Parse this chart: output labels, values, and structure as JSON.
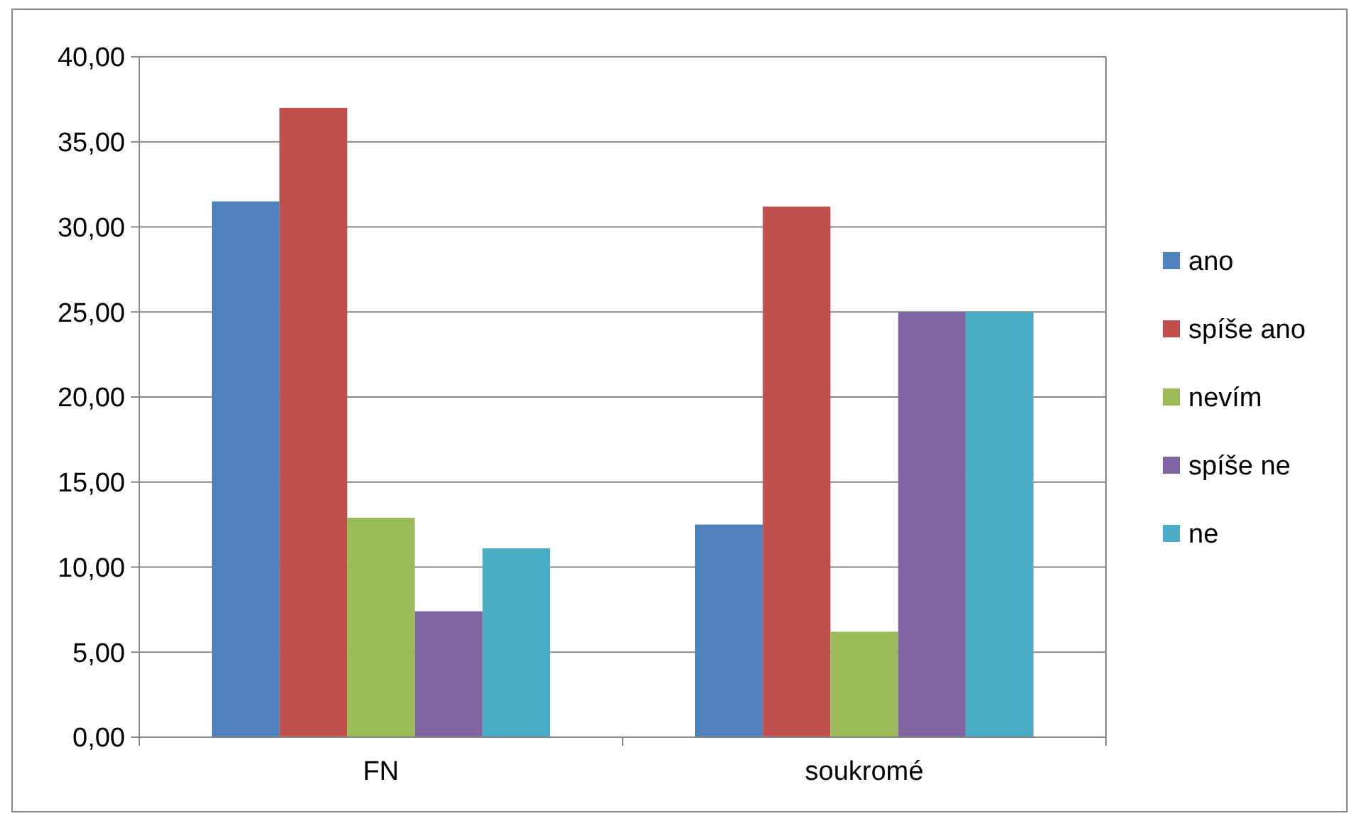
{
  "chart_data": {
    "type": "bar",
    "categories": [
      "FN",
      "soukromé"
    ],
    "series": [
      {
        "name": "ano",
        "color": "#4f81bd",
        "values": [
          31.5,
          12.5
        ]
      },
      {
        "name": "spíše ano",
        "color": "#c0504d",
        "values": [
          37,
          31.2
        ]
      },
      {
        "name": "nevím",
        "color": "#9bbb59",
        "values": [
          12.9,
          6.2
        ]
      },
      {
        "name": "spíše ne",
        "color": "#8064a2",
        "values": [
          7.4,
          25
        ]
      },
      {
        "name": "ne",
        "color": "#4bacc6",
        "values": [
          11.1,
          25
        ]
      }
    ],
    "ylim": [
      0,
      40
    ],
    "yticks": [
      {
        "value": 0,
        "label": "0,00"
      },
      {
        "value": 5,
        "label": "5,00"
      },
      {
        "value": 10,
        "label": "10,00"
      },
      {
        "value": 15,
        "label": "15,00"
      },
      {
        "value": 20,
        "label": "20,00"
      },
      {
        "value": 25,
        "label": "25,00"
      },
      {
        "value": 30,
        "label": "30,00"
      },
      {
        "value": 35,
        "label": "35,00"
      },
      {
        "value": 40,
        "label": "40,00"
      }
    ],
    "grid": "y",
    "legend": "right"
  }
}
